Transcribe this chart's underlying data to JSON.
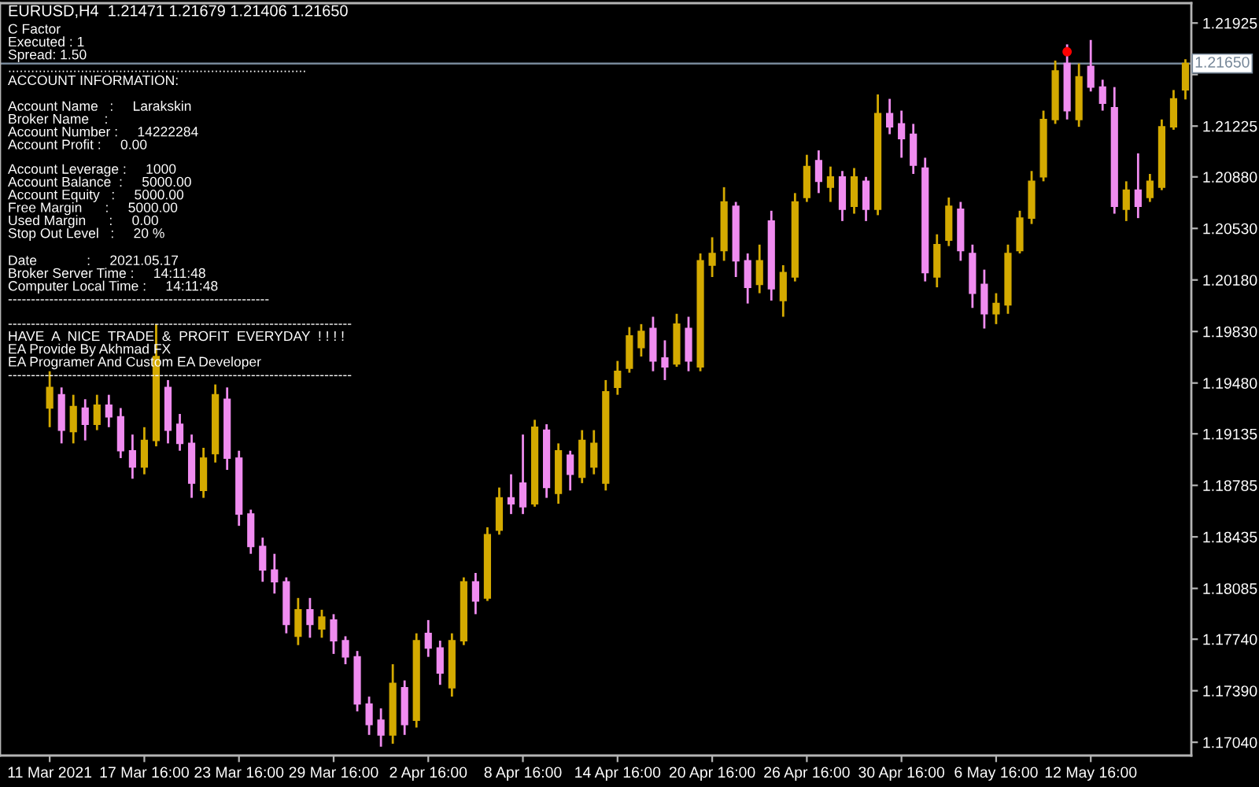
{
  "chart_data": {
    "type": "candlestick",
    "title": "EURUSD,H4  1.21471 1.21679 1.21406 1.21650",
    "annotations": [
      "C Factor\nExecuted : 1\nSpread: 1.50\n..............................................................................\nACCOUNT INFORMATION:",
      "Account Name   :     Larakskin\nBroker Name    :\nAccount Number :     14222284\nAccount Profit :     0.00",
      "Account Leverage :     1000\nAccount Balance  :     5000.00\nAccount Equity   :     5000.00\nFree Margin      :     5000.00\nUsed Margin      :     0.00\nStop Out Level   :     20 %",
      "Date             :     2021.05.17\nBroker Server Time :     14:11:48\nComputer Local Time :     14:11:48\n---------------------------------------------------------",
      "---------------------------------------------------------------------------\nHAVE  A  NICE  TRADE  &  PROFIT  EVERYDAY  ! ! ! !\nEA Provide By Akhmad FX\nEA Programer And Custom EA Developer\n---------------------------------------------------------------------------"
    ],
    "categories": [
      "11 Mar 2021",
      null,
      null,
      null,
      null,
      null,
      null,
      null,
      "17 Mar 16:00",
      null,
      null,
      null,
      null,
      null,
      null,
      null,
      "23 Mar 16:00",
      null,
      null,
      null,
      null,
      null,
      null,
      null,
      "29 Mar 16:00",
      null,
      null,
      null,
      null,
      null,
      null,
      null,
      "2 Apr 16:00",
      null,
      null,
      null,
      null,
      null,
      null,
      null,
      "8 Apr 16:00",
      null,
      null,
      null,
      null,
      null,
      null,
      null,
      "14 Apr 16:00",
      null,
      null,
      null,
      null,
      null,
      null,
      null,
      "20 Apr 16:00",
      null,
      null,
      null,
      null,
      null,
      null,
      null,
      "26 Apr 16:00",
      null,
      null,
      null,
      null,
      null,
      null,
      null,
      "30 Apr 16:00",
      null,
      null,
      null,
      null,
      null,
      null,
      null,
      "6 May 16:00",
      null,
      null,
      null,
      null,
      null,
      null,
      null,
      "12 May 16:00",
      null,
      null,
      null,
      null,
      null,
      null,
      null,
      null
    ],
    "ohlc": [
      [
        1.1931,
        1.1956,
        1.1918,
        1.1945
      ],
      [
        1.194,
        1.1945,
        1.1907,
        1.1916
      ],
      [
        1.1915,
        1.194,
        1.1907,
        1.1932
      ],
      [
        1.1931,
        1.1937,
        1.1909,
        1.192
      ],
      [
        1.192,
        1.194,
        1.1916,
        1.1933
      ],
      [
        1.1933,
        1.194,
        1.1918,
        1.1925
      ],
      [
        1.1925,
        1.1931,
        1.1897,
        1.1902
      ],
      [
        1.1902,
        1.1913,
        1.1883,
        1.1891
      ],
      [
        1.1891,
        1.1918,
        1.1886,
        1.1909
      ],
      [
        1.1909,
        1.1988,
        1.1905,
        1.1966
      ],
      [
        1.1945,
        1.195,
        1.1907,
        1.1916
      ],
      [
        1.192,
        1.1927,
        1.1902,
        1.1907
      ],
      [
        1.1907,
        1.1913,
        1.187,
        1.188
      ],
      [
        1.1875,
        1.1904,
        1.187,
        1.1897
      ],
      [
        1.19,
        1.1947,
        1.1894,
        1.194
      ],
      [
        1.1937,
        1.1945,
        1.1889,
        1.1897
      ],
      [
        1.1897,
        1.1902,
        1.1851,
        1.1859
      ],
      [
        1.1859,
        1.1862,
        1.1832,
        1.1837
      ],
      [
        1.1837,
        1.1843,
        1.1813,
        1.1821
      ],
      [
        1.1821,
        1.1832,
        1.1805,
        1.1813
      ],
      [
        1.1813,
        1.1816,
        1.1778,
        1.1784
      ],
      [
        1.1776,
        1.1802,
        1.177,
        1.1794
      ],
      [
        1.1794,
        1.1802,
        1.1775,
        1.1784
      ],
      [
        1.1781,
        1.1794,
        1.1775,
        1.1789
      ],
      [
        1.1787,
        1.1791,
        1.1764,
        1.1773
      ],
      [
        1.1773,
        1.1776,
        1.1757,
        1.1762
      ],
      [
        1.1762,
        1.1766,
        1.1725,
        1.173
      ],
      [
        1.173,
        1.1735,
        1.1709,
        1.1716
      ],
      [
        1.1719,
        1.1727,
        1.1701,
        1.1709
      ],
      [
        1.1709,
        1.1757,
        1.1703,
        1.1744
      ],
      [
        1.1741,
        1.1746,
        1.1709,
        1.1716
      ],
      [
        1.1719,
        1.1778,
        1.1714,
        1.1773
      ],
      [
        1.1778,
        1.1787,
        1.1762,
        1.1768
      ],
      [
        1.1768,
        1.1773,
        1.1743,
        1.1751
      ],
      [
        1.1741,
        1.1778,
        1.1735,
        1.1773
      ],
      [
        1.1773,
        1.1816,
        1.177,
        1.1813
      ],
      [
        1.1813,
        1.1819,
        1.1791,
        1.18
      ],
      [
        1.1802,
        1.185,
        1.18,
        1.1845
      ],
      [
        1.1848,
        1.1877,
        1.1845,
        1.187
      ],
      [
        1.187,
        1.1886,
        1.1859,
        1.1866
      ],
      [
        1.188,
        1.1913,
        1.1859,
        1.1864
      ],
      [
        1.1866,
        1.1923,
        1.1864,
        1.1918
      ],
      [
        1.1916,
        1.192,
        1.187,
        1.1877
      ],
      [
        1.1873,
        1.1907,
        1.1866,
        1.1902
      ],
      [
        1.1899,
        1.1902,
        1.1875,
        1.1886
      ],
      [
        1.1884,
        1.1916,
        1.188,
        1.1909
      ],
      [
        1.1891,
        1.1916,
        1.1886,
        1.1907
      ],
      [
        1.188,
        1.195,
        1.1875,
        1.1942
      ],
      [
        1.1945,
        1.1963,
        1.194,
        1.1956
      ],
      [
        1.1958,
        1.1986,
        1.1955,
        1.198
      ],
      [
        1.1972,
        1.1988,
        1.1966,
        1.1983
      ],
      [
        1.1985,
        1.1993,
        1.1956,
        1.1963
      ],
      [
        1.1965,
        1.1977,
        1.195,
        1.1959
      ],
      [
        1.1961,
        1.1995,
        1.1959,
        1.1988
      ],
      [
        1.1985,
        1.1993,
        1.1956,
        1.1963
      ],
      [
        1.1959,
        1.2036,
        1.1956,
        1.2031
      ],
      [
        1.2028,
        1.2047,
        1.202,
        1.2036
      ],
      [
        1.2038,
        1.2081,
        1.2031,
        1.2071
      ],
      [
        1.2068,
        1.2071,
        1.202,
        1.2031
      ],
      [
        1.2031,
        1.2036,
        1.2002,
        1.2013
      ],
      [
        1.2015,
        1.2042,
        1.2009,
        1.2031
      ],
      [
        1.2058,
        1.2065,
        1.2004,
        1.2012
      ],
      [
        1.2004,
        1.2028,
        1.1993,
        1.2023
      ],
      [
        1.202,
        1.2077,
        1.2017,
        1.2071
      ],
      [
        1.2074,
        1.2103,
        1.2071,
        1.2095
      ],
      [
        1.2099,
        1.2106,
        1.2077,
        1.2085
      ],
      [
        1.2081,
        1.2095,
        1.2071,
        1.2088
      ],
      [
        1.2088,
        1.2092,
        1.2058,
        1.2066
      ],
      [
        1.2068,
        1.2094,
        1.2063,
        1.2088
      ],
      [
        1.2085,
        1.2088,
        1.2058,
        1.2066
      ],
      [
        1.2066,
        1.2144,
        1.2062,
        1.2131
      ],
      [
        1.2131,
        1.2141,
        1.2117,
        1.2122
      ],
      [
        1.2124,
        1.2133,
        1.2101,
        1.2114
      ],
      [
        1.2117,
        1.2124,
        1.209,
        1.2096
      ],
      [
        1.2094,
        1.2101,
        1.2017,
        1.2023
      ],
      [
        1.202,
        1.2049,
        1.2013,
        1.2042
      ],
      [
        1.2045,
        1.2074,
        1.2041,
        1.2068
      ],
      [
        1.2066,
        1.2071,
        1.2031,
        1.2038
      ],
      [
        1.2036,
        1.2042,
        1.1999,
        1.2009
      ],
      [
        1.2015,
        1.2025,
        1.1985,
        1.1995
      ],
      [
        1.1995,
        1.2009,
        1.1988,
        1.2002
      ],
      [
        1.2001,
        1.2042,
        1.1995,
        1.2036
      ],
      [
        1.2038,
        1.2065,
        1.2036,
        1.206
      ],
      [
        1.206,
        1.2092,
        1.2056,
        1.2085
      ],
      [
        1.2088,
        1.2133,
        1.2085,
        1.2127
      ],
      [
        1.2127,
        1.2167,
        1.2124,
        1.216
      ],
      [
        1.2165,
        1.2178,
        1.2127,
        1.2133
      ],
      [
        1.2127,
        1.2165,
        1.2122,
        1.2156
      ],
      [
        1.2163,
        1.2181,
        1.2146,
        1.2149
      ],
      [
        1.2149,
        1.2154,
        1.2133,
        1.2138
      ],
      [
        1.2135,
        1.2149,
        1.2063,
        1.2068
      ],
      [
        1.2066,
        1.2085,
        1.2058,
        1.2079
      ],
      [
        1.2079,
        1.2104,
        1.206,
        1.2068
      ],
      [
        1.2074,
        1.209,
        1.2071,
        1.2085
      ],
      [
        1.2081,
        1.2127,
        1.2079,
        1.2122
      ],
      [
        1.2122,
        1.2147,
        1.212,
        1.2141
      ],
      [
        1.21471,
        1.21679,
        1.21406,
        1.2165
      ]
    ],
    "colors": [
      "#d4aa00",
      "#f08cf0",
      "#d4aa00",
      "#f08cf0",
      "#d4aa00",
      "#f08cf0",
      "#f08cf0",
      "#f08cf0",
      "#d4aa00",
      "#d4aa00",
      "#f08cf0",
      "#f08cf0",
      "#f08cf0",
      "#d4aa00",
      "#d4aa00",
      "#f08cf0",
      "#f08cf0",
      "#f08cf0",
      "#f08cf0",
      "#f08cf0",
      "#f08cf0",
      "#d4aa00",
      "#f08cf0",
      "#d4aa00",
      "#f08cf0",
      "#f08cf0",
      "#f08cf0",
      "#f08cf0",
      "#f08cf0",
      "#d4aa00",
      "#f08cf0",
      "#d4aa00",
      "#f08cf0",
      "#f08cf0",
      "#d4aa00",
      "#d4aa00",
      "#f08cf0",
      "#d4aa00",
      "#d4aa00",
      "#f08cf0",
      "#f08cf0",
      "#d4aa00",
      "#f08cf0",
      "#d4aa00",
      "#f08cf0",
      "#d4aa00",
      "#d4aa00",
      "#d4aa00",
      "#d4aa00",
      "#d4aa00",
      "#d4aa00",
      "#f08cf0",
      "#f08cf0",
      "#d4aa00",
      "#f08cf0",
      "#d4aa00",
      "#d4aa00",
      "#d4aa00",
      "#f08cf0",
      "#f08cf0",
      "#d4aa00",
      "#f08cf0",
      "#d4aa00",
      "#d4aa00",
      "#d4aa00",
      "#f08cf0",
      "#d4aa00",
      "#f08cf0",
      "#d4aa00",
      "#f08cf0",
      "#d4aa00",
      "#f08cf0",
      "#f08cf0",
      "#f08cf0",
      "#f08cf0",
      "#d4aa00",
      "#d4aa00",
      "#f08cf0",
      "#f08cf0",
      "#f08cf0",
      "#d4aa00",
      "#d4aa00",
      "#d4aa00",
      "#d4aa00",
      "#d4aa00",
      "#d4aa00",
      "#f08cf0",
      "#d4aa00",
      "#f08cf0",
      "#f08cf0",
      "#f08cf0",
      "#d4aa00",
      "#f08cf0",
      "#d4aa00",
      "#d4aa00",
      "#d4aa00",
      "#d4aa00"
    ],
    "series": [
      {
        "type": "scatter",
        "color": "#ff0000",
        "values": [
          null,
          null,
          null,
          null,
          null,
          null,
          null,
          null,
          null,
          null,
          null,
          null,
          null,
          null,
          null,
          null,
          null,
          null,
          null,
          null,
          null,
          null,
          null,
          null,
          null,
          null,
          null,
          null,
          null,
          null,
          null,
          null,
          null,
          null,
          null,
          null,
          null,
          null,
          null,
          null,
          null,
          null,
          null,
          null,
          null,
          null,
          null,
          null,
          null,
          null,
          null,
          null,
          null,
          null,
          null,
          null,
          null,
          null,
          null,
          null,
          null,
          null,
          null,
          null,
          null,
          null,
          null,
          null,
          null,
          null,
          null,
          null,
          null,
          null,
          null,
          null,
          null,
          null,
          null,
          null,
          null,
          null,
          null,
          null,
          null,
          null,
          1.2173,
          null,
          null,
          null,
          null,
          null,
          null,
          null,
          null,
          null,
          null
        ]
      }
    ],
    "marker": "circle",
    "ylim": [
      1.1695,
      1.2206
    ],
    "yticks": [
      1.21925,
      {
        "value": 1.21575,
        "label": null
      },
      1.21225,
      {
        "value": 1.2088,
        "label": "1.20880"
      },
      {
        "value": 1.2053,
        "label": "1.20530"
      },
      {
        "value": 1.2018,
        "label": "1.20180"
      },
      {
        "value": 1.1983,
        "label": "1.19830"
      },
      {
        "value": 1.1948,
        "label": "1.19480"
      },
      1.19135,
      1.18785,
      1.18435,
      1.18085,
      {
        "value": 1.1774,
        "label": "1.17740"
      },
      {
        "value": 1.1739,
        "label": "1.17390"
      },
      {
        "value": 1.1704,
        "label": "1.17040"
      }
    ],
    "ref_lines": [
      {
        "axis": "y",
        "value": 1.2165,
        "label": "1.21650",
        "color": "#778899"
      }
    ]
  }
}
